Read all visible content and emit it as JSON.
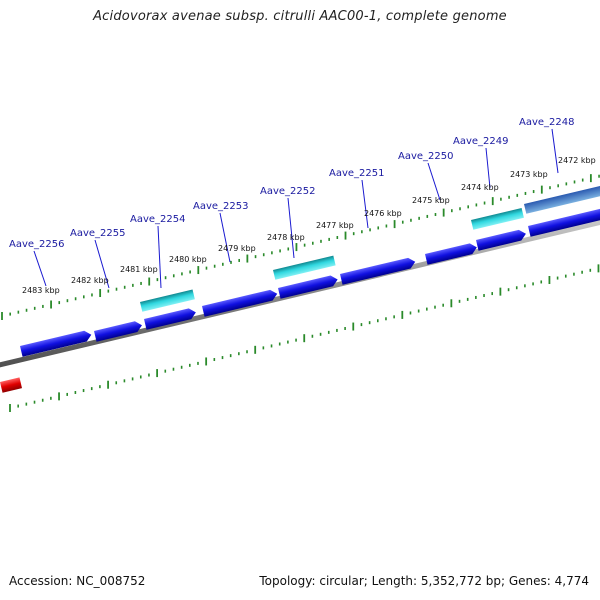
{
  "title": "Acidovorax avenae subsp. citrulli AAC00-1, complete genome",
  "footer": {
    "accession": "Accession: NC_008752",
    "summary": "Topology: circular; Length: 5,352,772 bp; Genes: 4,774"
  },
  "colors": {
    "forward_gene": "#1010e0",
    "rna_gene": "#20c8d0",
    "reverse_gene": "#e01010",
    "backbone": "#888888",
    "ticks": "#2a8a2a",
    "label_line": "#1a1ad0"
  },
  "position_labels": [
    {
      "text": "2472 kbp",
      "kbp": 2472
    },
    {
      "text": "2473 kbp",
      "kbp": 2473
    },
    {
      "text": "2474 kbp",
      "kbp": 2474
    },
    {
      "text": "2475 kbp",
      "kbp": 2475
    },
    {
      "text": "2476 kbp",
      "kbp": 2476
    },
    {
      "text": "2477 kbp",
      "kbp": 2477
    },
    {
      "text": "2478 kbp",
      "kbp": 2478
    },
    {
      "text": "2479 kbp",
      "kbp": 2479
    },
    {
      "text": "2480 kbp",
      "kbp": 2480
    },
    {
      "text": "2481 kbp",
      "kbp": 2481
    },
    {
      "text": "2482 kbp",
      "kbp": 2482
    },
    {
      "text": "2483 kbp",
      "kbp": 2483
    }
  ],
  "gene_labels": [
    {
      "name": "Aave_2248"
    },
    {
      "name": "Aave_2249"
    },
    {
      "name": "Aave_2250"
    },
    {
      "name": "Aave_2251"
    },
    {
      "name": "Aave_2252"
    },
    {
      "name": "Aave_2253"
    },
    {
      "name": "Aave_2254"
    },
    {
      "name": "Aave_2255"
    },
    {
      "name": "Aave_2256"
    }
  ],
  "features": [
    {
      "kind": "forward"
    },
    {
      "kind": "forward"
    },
    {
      "kind": "forward"
    },
    {
      "kind": "forward"
    },
    {
      "kind": "forward"
    },
    {
      "kind": "forward"
    },
    {
      "kind": "forward"
    },
    {
      "kind": "forward"
    },
    {
      "kind": "forward"
    },
    {
      "kind": "forward"
    },
    {
      "kind": "rna"
    },
    {
      "kind": "rna"
    },
    {
      "kind": "rna"
    },
    {
      "kind": "rna"
    },
    {
      "kind": "reverse"
    }
  ]
}
